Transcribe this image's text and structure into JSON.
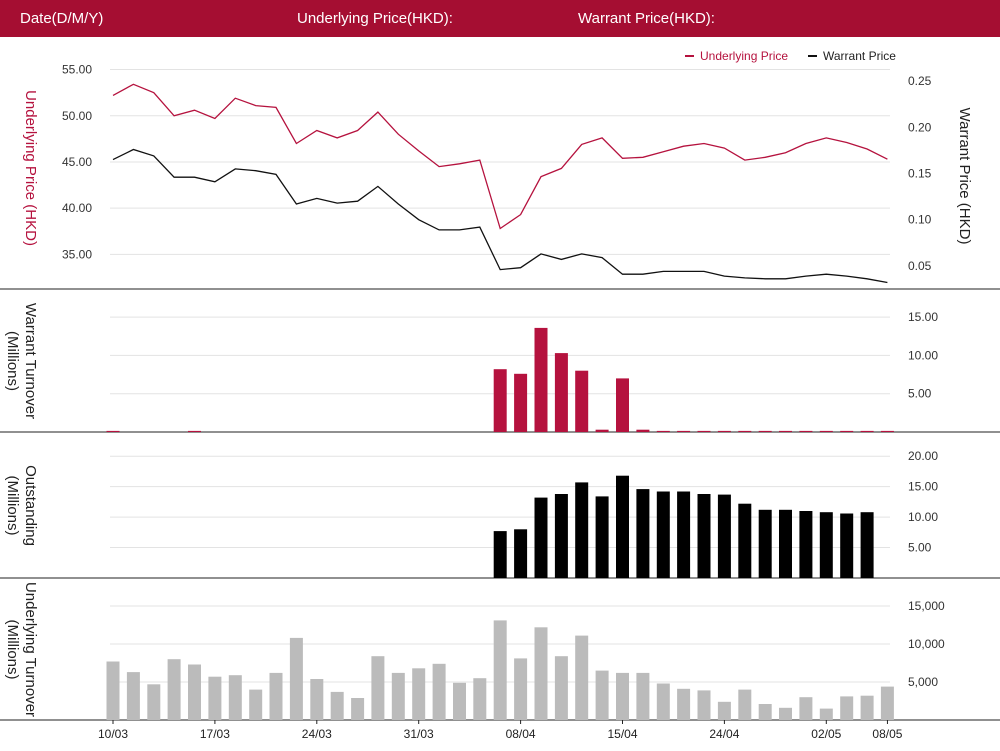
{
  "header": {
    "date_label": "Date(D/M/Y)",
    "underlying_label": "Underlying Price(HKD):",
    "warrant_label": "Warrant Price(HKD):"
  },
  "colors": {
    "brand": "#a50e32",
    "underlying": "#b5123e",
    "warrant": "#111111",
    "turnover_bar": "#b5123e",
    "outstanding_bar": "#000000",
    "underlying_turnover_bar": "#bbbbbb",
    "grid": "#e3e3e3"
  },
  "chart_data": [
    {
      "type": "line",
      "legend": [
        "Underlying Price",
        "Warrant Price"
      ],
      "legend_position": "top-right",
      "ylabel": "Underlying Price (HKD)",
      "y2label": "Warrant  Price (HKD)",
      "yticks": [
        "35.00",
        "40.00",
        "45.00",
        "50.00",
        "55.00"
      ],
      "y2ticks": [
        "0.05",
        "0.10",
        "0.15",
        "0.20",
        "0.25"
      ],
      "ylim": [
        31.25,
        56.25
      ],
      "y2lim": [
        0.025,
        0.275
      ],
      "grid": true,
      "series": [
        {
          "name": "Underlying Price",
          "axis": "left",
          "values": [
            52.2,
            53.4,
            52.5,
            50.0,
            50.6,
            49.7,
            51.9,
            51.1,
            50.9,
            47.0,
            48.4,
            47.6,
            48.4,
            50.4,
            48.0,
            46.2,
            44.5,
            44.8,
            45.2,
            37.8,
            39.3,
            43.4,
            44.3,
            46.9,
            47.6,
            45.4,
            45.5,
            46.1,
            46.7,
            47.0,
            46.5,
            45.2,
            45.5,
            46.0,
            47.0,
            47.6,
            47.1,
            46.4,
            45.3
          ]
        },
        {
          "name": "Warrant Price",
          "axis": "right",
          "values": [
            0.165,
            0.176,
            0.169,
            0.146,
            0.146,
            0.141,
            0.155,
            0.153,
            0.149,
            0.117,
            0.123,
            0.118,
            0.12,
            0.136,
            0.117,
            0.1,
            0.089,
            0.089,
            0.092,
            0.046,
            0.048,
            0.063,
            0.057,
            0.063,
            0.059,
            0.041,
            0.041,
            0.044,
            0.044,
            0.044,
            0.039,
            0.037,
            0.036,
            0.036,
            0.039,
            0.041,
            0.039,
            0.036,
            0.032
          ]
        }
      ]
    },
    {
      "type": "bar",
      "ylabel": "Warrant  Turnover (Millions)",
      "yticks": [
        "5.00",
        "10.00",
        "15.00"
      ],
      "ylim": [
        0,
        17.5
      ],
      "grid": true,
      "series": [
        {
          "values": [
            0.15,
            0,
            0,
            0,
            0.15,
            0,
            0,
            0,
            0,
            0,
            0,
            0,
            0,
            0,
            0,
            0,
            0,
            0,
            0,
            8.2,
            7.6,
            13.6,
            10.3,
            8.0,
            0.3,
            7.0,
            0.3,
            0.15,
            0.15,
            0.15,
            0.15,
            0.15,
            0.15,
            0.15,
            0.15,
            0.15,
            0.15,
            0.15,
            0.15
          ]
        }
      ]
    },
    {
      "type": "bar",
      "ylabel": "Outstanding (Millions)",
      "yticks": [
        "5.00",
        "10.00",
        "15.00",
        "20.00"
      ],
      "ylim": [
        0,
        22.5
      ],
      "grid": true,
      "series": [
        {
          "values": [
            0,
            0,
            0,
            0,
            0,
            0,
            0,
            0,
            0,
            0,
            0,
            0,
            0,
            0,
            0,
            0,
            0,
            0,
            0,
            7.7,
            8.0,
            13.2,
            13.8,
            15.7,
            13.4,
            16.8,
            14.6,
            14.2,
            14.2,
            13.8,
            13.7,
            12.2,
            11.2,
            11.2,
            11.0,
            10.8,
            10.6,
            10.8,
            0
          ]
        }
      ]
    },
    {
      "type": "bar",
      "ylabel": "Underlying Turnover (Millions)",
      "yticks": [
        "5,000",
        "10,000",
        "15,000"
      ],
      "ylim": [
        0,
        17500
      ],
      "grid": true,
      "categories_shown": [
        "10/03",
        "17/03",
        "24/03",
        "31/03",
        "08/04",
        "15/04",
        "24/04",
        "02/05",
        "08/05"
      ],
      "series": [
        {
          "values": [
            7700,
            6300,
            4700,
            8000,
            7300,
            5700,
            5900,
            4000,
            6200,
            10800,
            5400,
            3700,
            2900,
            8400,
            6200,
            6800,
            7400,
            4900,
            5500,
            13100,
            8100,
            12200,
            8400,
            11100,
            6500,
            6200,
            6200,
            4800,
            4100,
            3900,
            2400,
            4000,
            2100,
            1600,
            3000,
            1500,
            3100,
            3200,
            4400
          ]
        }
      ]
    }
  ]
}
